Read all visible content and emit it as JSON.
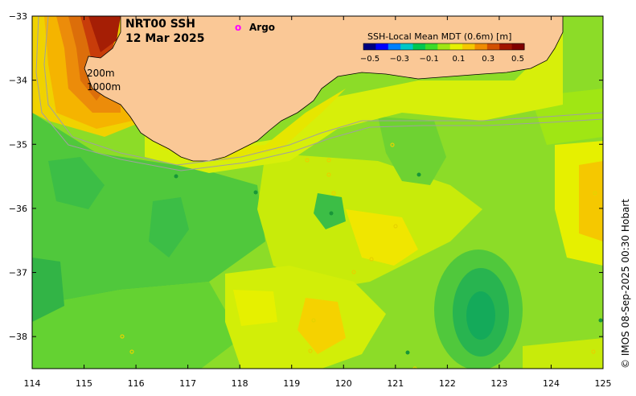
{
  "title": {
    "line1": "NRT00 SSH",
    "line2": "12 Mar 2025"
  },
  "legend": {
    "argo_symbol": "o",
    "argo_label": "Argo",
    "argo_color": "#ff00ff"
  },
  "colorbar": {
    "title": "SSH-Local Mean MDT (0.6m) [m]",
    "ticks": [
      "−0.5",
      "−0.3",
      "−0.1",
      "0.1",
      "0.3",
      "0.5"
    ],
    "colors": [
      "#000080",
      "#0000ff",
      "#0080ff",
      "#00c8c8",
      "#00c850",
      "#3cdc28",
      "#a0e614",
      "#e6f000",
      "#f5c800",
      "#f08c00",
      "#d25000",
      "#a01400",
      "#800000"
    ]
  },
  "isobaths": {
    "shallow": "200m",
    "deep": "1000m"
  },
  "axes": {
    "x_ticks": [
      "114",
      "115",
      "116",
      "117",
      "118",
      "119",
      "120",
      "121",
      "122",
      "123",
      "124",
      "125"
    ],
    "y_ticks": [
      "−33",
      "−34",
      "−35",
      "−36",
      "−37",
      "−38"
    ],
    "xlim": [
      114,
      125
    ],
    "ylim": [
      -38.5,
      -33
    ]
  },
  "credit": "© IMOS 08-Sep-2025 00:30 Hobart",
  "colors": {
    "land": "#fac896",
    "ocean_base": "#78d228"
  }
}
